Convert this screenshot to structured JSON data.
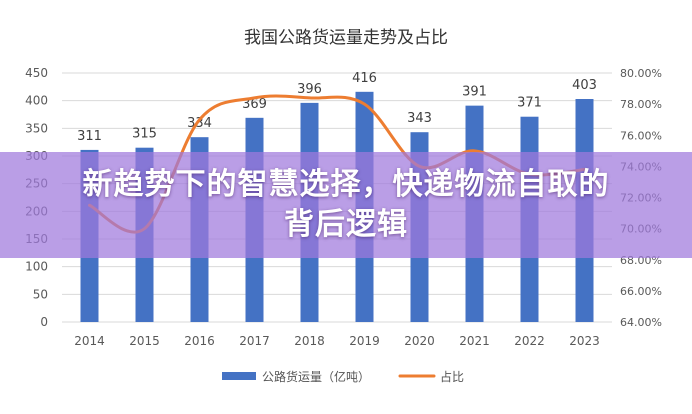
{
  "chart_data": {
    "type": "bar",
    "title": "我国公路货运量走势及占比",
    "categories": [
      "2014",
      "2015",
      "2016",
      "2017",
      "2018",
      "2019",
      "2020",
      "2021",
      "2022",
      "2023"
    ],
    "series": [
      {
        "name": "公路货运量（亿吨）",
        "type": "bar",
        "axis": "left",
        "values": [
          311,
          315,
          334,
          369,
          396,
          416,
          343,
          391,
          371,
          403
        ],
        "color": "#4472C4"
      },
      {
        "name": "占比",
        "type": "line",
        "axis": "right",
        "values": [
          71.5,
          70.0,
          77.0,
          78.4,
          78.4,
          78.0,
          74.0,
          75.0,
          73.5,
          73.8
        ],
        "color": "#ED7D31"
      }
    ],
    "y_left": {
      "min": 0,
      "max": 450,
      "step": 50,
      "ticks": [
        "0",
        "50",
        "100",
        "150",
        "200",
        "250",
        "300",
        "350",
        "400",
        "450"
      ]
    },
    "y_right": {
      "min": 64,
      "max": 80,
      "step": 2,
      "ticks": [
        "64.00%",
        "66.00%",
        "68.00%",
        "70.00%",
        "72.00%",
        "74.00%",
        "76.00%",
        "78.00%",
        "80.00%"
      ]
    },
    "grid": true,
    "legend_position": "bottom"
  },
  "overlay": {
    "line1": "新趋势下的智慧选择，快递物流自取的",
    "line2": "背后逻辑"
  }
}
